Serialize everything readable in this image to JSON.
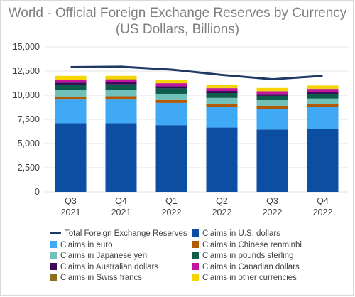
{
  "chart_data": {
    "type": "bar",
    "stacked": true,
    "title": "World - Official Foreign Exchange Reserves by Currency",
    "subtitle": "(US Dollars, Billions)",
    "categories": [
      {
        "quarter": "Q3",
        "year": "2021"
      },
      {
        "quarter": "Q4",
        "year": "2021"
      },
      {
        "quarter": "Q1",
        "year": "2022"
      },
      {
        "quarter": "Q2",
        "year": "2022"
      },
      {
        "quarter": "Q3",
        "year": "2022"
      },
      {
        "quarter": "Q4",
        "year": "2022"
      }
    ],
    "ylim": [
      0,
      15000
    ],
    "yticks": [
      "0",
      "2,500",
      "5,000",
      "7,500",
      "10,000",
      "12,500",
      "15,000"
    ],
    "ytick_values": [
      0,
      2500,
      5000,
      7500,
      10000,
      12500,
      15000
    ],
    "grid": true,
    "legend_position": "bottom",
    "line_series": {
      "name": "Total Foreign Exchange Reserves",
      "color": "#1f3864",
      "values": [
        12900,
        12950,
        12650,
        12100,
        11650,
        12000
      ]
    },
    "series": [
      {
        "name": "Claims in U.S. dollars",
        "color": "#0b4ea2",
        "values": [
          7100,
          7100,
          6900,
          6650,
          6450,
          6500
        ]
      },
      {
        "name": "Claims in euro",
        "color": "#3fa9f5",
        "values": [
          2450,
          2450,
          2300,
          2150,
          2150,
          2250
        ]
      },
      {
        "name": "Claims in Chinese renminbi",
        "color": "#b35a00",
        "values": [
          280,
          340,
          300,
          300,
          300,
          300
        ]
      },
      {
        "name": "Claims in Japanese yen",
        "color": "#6fc1b9",
        "values": [
          700,
          650,
          650,
          620,
          580,
          600
        ]
      },
      {
        "name": "Claims in pounds sterling",
        "color": "#0e5c4a",
        "values": [
          560,
          580,
          560,
          500,
          450,
          500
        ]
      },
      {
        "name": "Claims in Australian dollars",
        "color": "#3b0a5a",
        "values": [
          220,
          230,
          230,
          220,
          200,
          220
        ]
      },
      {
        "name": "Claims in Canadian dollars",
        "color": "#c4139c",
        "values": [
          280,
          280,
          290,
          280,
          270,
          280
        ]
      },
      {
        "name": "Claims in Swiss francs",
        "color": "#8a6d1f",
        "values": [
          25,
          25,
          25,
          25,
          25,
          25
        ]
      },
      {
        "name": "Claims in other currencies",
        "color": "#f5d400",
        "values": [
          385,
          345,
          345,
          355,
          325,
          325
        ]
      }
    ]
  }
}
